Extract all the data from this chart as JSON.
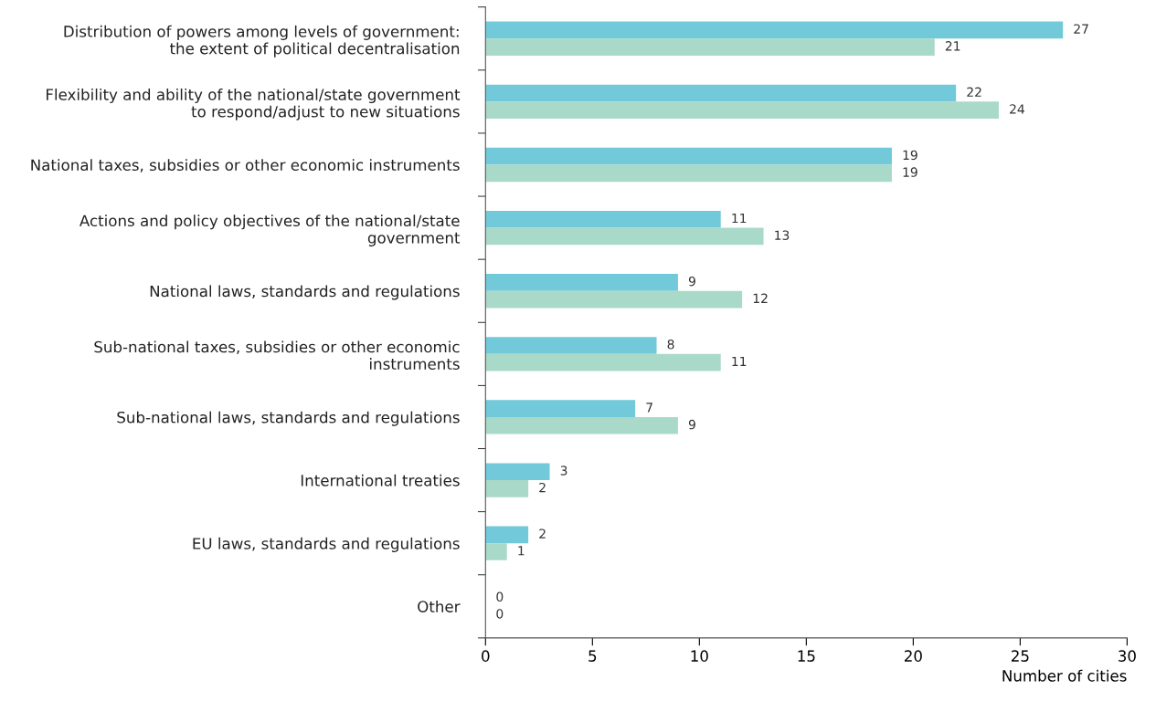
{
  "chart_data": {
    "type": "bar",
    "orientation": "horizontal",
    "xlabel": "Number of cities",
    "categories": [
      "Distribution of powers among levels of government:\nthe extent of political decentralisation",
      "Flexibility and ability of the national/state government\nto respond/adjust to new situations",
      "National taxes, subsidies or other economic instruments",
      "Actions and policy objectives of the national/state\ngovernment",
      "National laws, standards and regulations",
      "Sub-national taxes, subsidies or other economic\ninstruments",
      "Sub-national laws, standards and regulations",
      "International treaties",
      "EU laws, standards and regulations",
      "Other"
    ],
    "series": [
      {
        "color": "#72c9d9",
        "values": [
          27,
          22,
          19,
          11,
          9,
          8,
          7,
          3,
          2,
          0
        ]
      },
      {
        "color": "#a9d9c9",
        "values": [
          21,
          24,
          19,
          13,
          12,
          11,
          9,
          2,
          1,
          0
        ]
      }
    ],
    "xlim": [
      0,
      30
    ],
    "xticks": [
      0,
      5,
      10,
      15,
      20,
      25,
      30
    ],
    "data_labels": true,
    "grid": false
  }
}
